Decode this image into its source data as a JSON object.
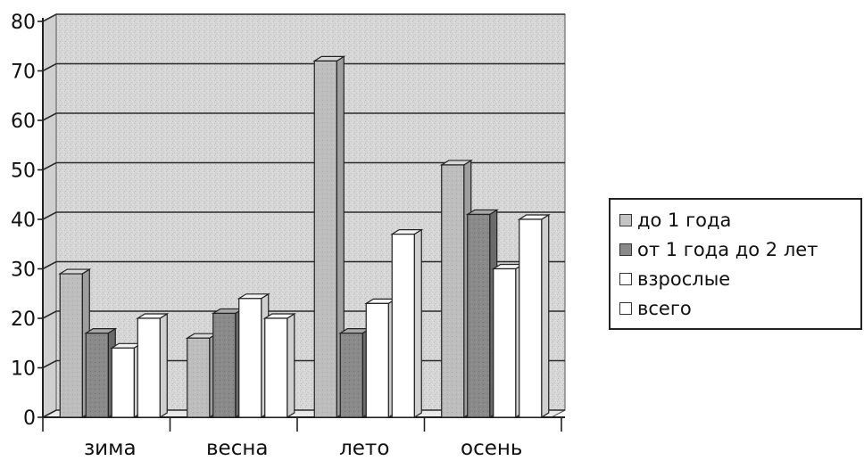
{
  "chart_data": {
    "type": "bar",
    "categories": [
      "зима",
      "весна",
      "лето",
      "осень"
    ],
    "series": [
      {
        "name": "до 1 года",
        "values": [
          29,
          16,
          72,
          51
        ],
        "color": "#b8b8b8"
      },
      {
        "name": "от 1 года до 2 лет",
        "values": [
          17,
          21,
          17,
          41
        ],
        "color": "#858585"
      },
      {
        "name": "взрослые",
        "values": [
          14,
          24,
          23,
          30
        ],
        "color": "#ffffff"
      },
      {
        "name": "всего",
        "values": [
          20,
          20,
          37,
          40
        ],
        "color": "#ffffff"
      }
    ],
    "ylim": [
      0,
      80
    ],
    "yticks": [
      0,
      10,
      20,
      30,
      40,
      50,
      60,
      70,
      80
    ],
    "grid": true,
    "legend": "right",
    "style": "3d-clustered-column"
  }
}
